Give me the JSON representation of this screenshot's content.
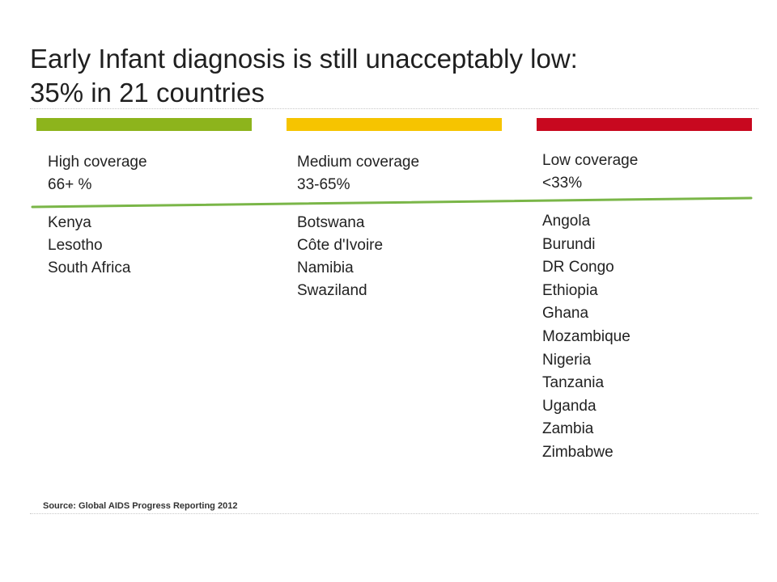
{
  "slide": {
    "title_line1": "Early Infant diagnosis is still unacceptably low:",
    "title_line2": "35% in 21 countries",
    "source": "Source: Global AIDS Progress Reporting 2012"
  },
  "colors": {
    "high": "#8db41c",
    "medium": "#f6c400",
    "low": "#c8081f",
    "divider": "#7ab648",
    "rule": "#c8c8c8"
  },
  "columns": [
    {
      "label": "High coverage",
      "range": "66+ %",
      "countries": [
        "Kenya",
        "Lesotho",
        "South Africa"
      ]
    },
    {
      "label": "Medium coverage",
      "range": "33-65%",
      "countries": [
        "Botswana",
        "Côte d'Ivoire",
        "Namibia",
        "Swaziland"
      ]
    },
    {
      "label": "Low coverage",
      "range": "<33%",
      "countries": [
        "Angola",
        "Burundi",
        "DR Congo",
        "Ethiopia",
        "Ghana",
        "Mozambique",
        "Nigeria",
        "Tanzania",
        "Uganda",
        "Zambia",
        "Zimbabwe"
      ]
    }
  ]
}
